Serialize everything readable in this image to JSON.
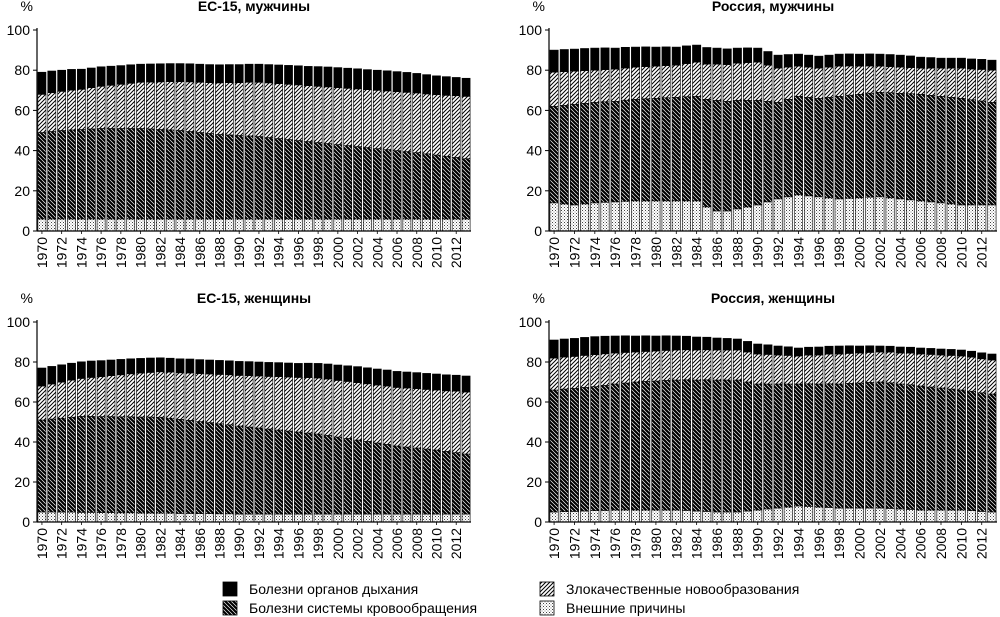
{
  "legend": [
    {
      "key": "resp",
      "label": "Болезни органов дыхания"
    },
    {
      "key": "circ",
      "label": "Болезни системы кровообращения"
    },
    {
      "key": "canc",
      "label": "Злокачественные новообразования"
    },
    {
      "key": "ext",
      "label": "Внешние причины"
    }
  ],
  "chart_data": [
    {
      "type": "bar",
      "stacked": true,
      "title": "ЕС-15, мужчины",
      "ylabel": "%",
      "ylim": [
        0,
        100
      ],
      "yticks": [
        0,
        20,
        40,
        60,
        80,
        100
      ],
      "x_start": 1970,
      "x_end": 2013,
      "xtick_labels": [
        "1970",
        "1972",
        "1974",
        "1976",
        "1978",
        "1980",
        "1982",
        "1984",
        "1986",
        "1988",
        "1990",
        "1992",
        "1994",
        "1996",
        "1998",
        "2000",
        "2002",
        "2004",
        "2006",
        "2008",
        "2010",
        "2012"
      ],
      "series_keys": [
        "ext",
        "circ",
        "canc",
        "resp"
      ],
      "anchors": {
        "ext": [
          [
            1970,
            6
          ],
          [
            1990,
            6
          ],
          [
            2013,
            6
          ]
        ],
        "circ": [
          [
            1970,
            43
          ],
          [
            1972,
            44
          ],
          [
            1976,
            45
          ],
          [
            1980,
            45
          ],
          [
            1984,
            44
          ],
          [
            1988,
            42
          ],
          [
            1992,
            41
          ],
          [
            1996,
            39
          ],
          [
            2000,
            37
          ],
          [
            2004,
            35
          ],
          [
            2008,
            33
          ],
          [
            2013,
            30
          ]
        ],
        "canc": [
          [
            1970,
            19
          ],
          [
            1974,
            20
          ],
          [
            1980,
            23
          ],
          [
            1986,
            25
          ],
          [
            1992,
            27
          ],
          [
            1998,
            28
          ],
          [
            2004,
            29
          ],
          [
            2010,
            30
          ],
          [
            2013,
            31
          ]
        ],
        "resp": [
          [
            1970,
            11
          ],
          [
            1974,
            10
          ],
          [
            1980,
            9
          ],
          [
            1986,
            9
          ],
          [
            1992,
            9
          ],
          [
            2000,
            10
          ],
          [
            2006,
            10
          ],
          [
            2013,
            9
          ]
        ]
      }
    },
    {
      "type": "bar",
      "stacked": true,
      "title": "Россия, мужчины",
      "ylabel": "%",
      "ylim": [
        0,
        100
      ],
      "yticks": [
        0,
        20,
        40,
        60,
        80,
        100
      ],
      "x_start": 1970,
      "x_end": 2013,
      "xtick_labels": [
        "1970",
        "1972",
        "1974",
        "1976",
        "1978",
        "1980",
        "1982",
        "1984",
        "1986",
        "1988",
        "1990",
        "1992",
        "1994",
        "1996",
        "1998",
        "2000",
        "2002",
        "2004",
        "2006",
        "2008",
        "2010",
        "2012"
      ],
      "series_keys": [
        "ext",
        "circ",
        "canc",
        "resp"
      ],
      "anchors": {
        "ext": [
          [
            1970,
            14
          ],
          [
            1972,
            13
          ],
          [
            1974,
            14
          ],
          [
            1978,
            15
          ],
          [
            1984,
            15
          ],
          [
            1985,
            12
          ],
          [
            1986,
            10
          ],
          [
            1987,
            10
          ],
          [
            1988,
            11
          ],
          [
            1990,
            13
          ],
          [
            1992,
            16
          ],
          [
            1994,
            18
          ],
          [
            1996,
            17
          ],
          [
            1998,
            16
          ],
          [
            2002,
            17
          ],
          [
            2006,
            15
          ],
          [
            2010,
            13
          ],
          [
            2013,
            13
          ]
        ],
        "circ": [
          [
            1970,
            48
          ],
          [
            1972,
            50
          ],
          [
            1976,
            50
          ],
          [
            1980,
            51
          ],
          [
            1984,
            52
          ],
          [
            1986,
            55
          ],
          [
            1988,
            54
          ],
          [
            1990,
            52
          ],
          [
            1992,
            48
          ],
          [
            1994,
            49
          ],
          [
            1996,
            49
          ],
          [
            1998,
            51
          ],
          [
            2002,
            52
          ],
          [
            2006,
            53
          ],
          [
            2010,
            53
          ],
          [
            2013,
            51
          ]
        ],
        "canc": [
          [
            1970,
            17
          ],
          [
            1974,
            16
          ],
          [
            1978,
            16
          ],
          [
            1982,
            16
          ],
          [
            1986,
            18
          ],
          [
            1990,
            19
          ],
          [
            1994,
            15
          ],
          [
            1998,
            15
          ],
          [
            2002,
            13
          ],
          [
            2006,
            13
          ],
          [
            2010,
            15
          ],
          [
            2013,
            16
          ]
        ],
        "resp": [
          [
            1970,
            11
          ],
          [
            1974,
            11
          ],
          [
            1978,
            10
          ],
          [
            1982,
            9
          ],
          [
            1986,
            8
          ],
          [
            1990,
            7
          ],
          [
            1994,
            6
          ],
          [
            1998,
            6
          ],
          [
            2004,
            6
          ],
          [
            2008,
            5
          ],
          [
            2013,
            5
          ]
        ]
      }
    },
    {
      "type": "bar",
      "stacked": true,
      "title": "ЕС-15, женщины",
      "ylabel": "%",
      "ylim": [
        0,
        100
      ],
      "yticks": [
        0,
        20,
        40,
        60,
        80,
        100
      ],
      "x_start": 1970,
      "x_end": 2013,
      "xtick_labels": [
        "1970",
        "1972",
        "1974",
        "1976",
        "1978",
        "1980",
        "1982",
        "1984",
        "1986",
        "1988",
        "1990",
        "1992",
        "1994",
        "1996",
        "1998",
        "2000",
        "2002",
        "2004",
        "2006",
        "2008",
        "2010",
        "2012"
      ],
      "series_keys": [
        "ext",
        "circ",
        "canc",
        "resp"
      ],
      "anchors": {
        "ext": [
          [
            1970,
            5
          ],
          [
            1990,
            4
          ],
          [
            2013,
            4
          ]
        ],
        "circ": [
          [
            1970,
            46
          ],
          [
            1974,
            48
          ],
          [
            1978,
            48
          ],
          [
            1982,
            48
          ],
          [
            1986,
            46
          ],
          [
            1990,
            44
          ],
          [
            1994,
            42
          ],
          [
            1998,
            40
          ],
          [
            2002,
            37
          ],
          [
            2006,
            34
          ],
          [
            2010,
            32
          ],
          [
            2013,
            30
          ]
        ],
        "canc": [
          [
            1970,
            17
          ],
          [
            1974,
            19
          ],
          [
            1980,
            22
          ],
          [
            1986,
            24
          ],
          [
            1992,
            26
          ],
          [
            1998,
            28
          ],
          [
            2004,
            29
          ],
          [
            2010,
            30
          ],
          [
            2013,
            31
          ]
        ],
        "resp": [
          [
            1970,
            9
          ],
          [
            1976,
            8
          ],
          [
            1982,
            7
          ],
          [
            1990,
            7
          ],
          [
            1996,
            7
          ],
          [
            2002,
            8
          ],
          [
            2008,
            8
          ],
          [
            2013,
            8
          ]
        ]
      }
    },
    {
      "type": "bar",
      "stacked": true,
      "title": "Россия, женщины",
      "ylabel": "%",
      "ylim": [
        0,
        100
      ],
      "yticks": [
        0,
        20,
        40,
        60,
        80,
        100
      ],
      "x_start": 1970,
      "x_end": 2013,
      "xtick_labels": [
        "1970",
        "1972",
        "1974",
        "1976",
        "1978",
        "1980",
        "1982",
        "1984",
        "1986",
        "1988",
        "1990",
        "1992",
        "1994",
        "1996",
        "1998",
        "2000",
        "2002",
        "2004",
        "2006",
        "2008",
        "2010",
        "2012"
      ],
      "series_keys": [
        "ext",
        "circ",
        "canc",
        "resp"
      ],
      "anchors": {
        "ext": [
          [
            1970,
            5
          ],
          [
            1976,
            6
          ],
          [
            1982,
            6
          ],
          [
            1986,
            5
          ],
          [
            1988,
            5
          ],
          [
            1990,
            6
          ],
          [
            1992,
            7
          ],
          [
            1994,
            8
          ],
          [
            1998,
            7
          ],
          [
            2002,
            7
          ],
          [
            2006,
            6
          ],
          [
            2010,
            6
          ],
          [
            2013,
            5
          ]
        ],
        "circ": [
          [
            1970,
            61
          ],
          [
            1974,
            62
          ],
          [
            1978,
            64
          ],
          [
            1982,
            65
          ],
          [
            1986,
            66
          ],
          [
            1988,
            66
          ],
          [
            1990,
            63
          ],
          [
            1994,
            61
          ],
          [
            1998,
            62
          ],
          [
            2002,
            63
          ],
          [
            2006,
            62
          ],
          [
            2010,
            60
          ],
          [
            2013,
            59
          ]
        ],
        "canc": [
          [
            1970,
            16
          ],
          [
            1974,
            16
          ],
          [
            1978,
            15
          ],
          [
            1982,
            15
          ],
          [
            1986,
            15
          ],
          [
            1990,
            15
          ],
          [
            1994,
            14
          ],
          [
            1998,
            15
          ],
          [
            2002,
            15
          ],
          [
            2006,
            16
          ],
          [
            2010,
            17
          ],
          [
            2013,
            17
          ]
        ],
        "resp": [
          [
            1970,
            9
          ],
          [
            1974,
            9
          ],
          [
            1978,
            8
          ],
          [
            1982,
            7
          ],
          [
            1986,
            6
          ],
          [
            1990,
            5
          ],
          [
            1994,
            4
          ],
          [
            1998,
            4
          ],
          [
            2002,
            3
          ],
          [
            2006,
            3
          ],
          [
            2010,
            3
          ],
          [
            2013,
            3
          ]
        ]
      }
    }
  ]
}
